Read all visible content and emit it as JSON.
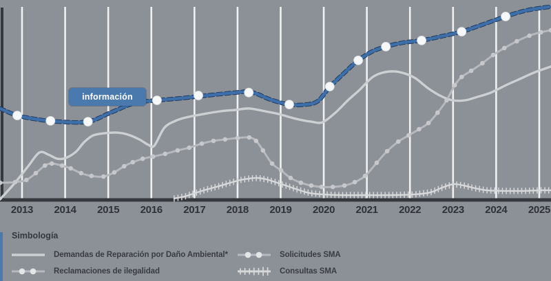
{
  "tooltip": {
    "label": "información"
  },
  "legend": {
    "title": "Simbología",
    "items": [
      {
        "id": "demandas",
        "label": "Demandas de Reparación por Daño Ambiental*",
        "swatch": "line"
      },
      {
        "id": "reclamaciones",
        "label": "Reclamaciones de ilegalidad",
        "swatch": "line-dots"
      },
      {
        "id": "solicitudes-sma",
        "label": "Solicitudes SMA",
        "swatch": "line-dots"
      },
      {
        "id": "consultas-sma",
        "label": "Consultas SMA",
        "swatch": "line-ticks"
      }
    ]
  },
  "colors": {
    "background": "#8c9097",
    "grid": "#f0f1f2",
    "axis": "#35383d",
    "highlight": "#3e6fa9",
    "highlight_edge": "#1e3a5f",
    "highlight_marker": "#f7f8f9",
    "highlight_marker_edge": "#dfe3e6",
    "tooltip_bg": "#4a79ae",
    "tooltip_text": "#ffffff",
    "gray_light": "#cdd0d3",
    "gray_mid": "#b6b9bd",
    "gray_mid_marker": "#c6c8cc",
    "gray_tick": "#d7d8da",
    "label_text": "#2e3136",
    "legend_text": "#393c41",
    "accent_bar": "#4a79ae"
  },
  "chart_data": {
    "type": "line",
    "title": "",
    "xlabel": "",
    "ylabel": "",
    "x_ticks": [
      2013,
      2014,
      2015,
      2016,
      2017,
      2018,
      2019,
      2020,
      2021,
      2022,
      2023,
      2024,
      2025
    ],
    "x_tick_labels": [
      "2013",
      "2014",
      "2015",
      "2016",
      "2017",
      "2018",
      "2019",
      "2020",
      "2021",
      "2022",
      "2023",
      "2024",
      "2025"
    ],
    "x_range": [
      2012.49,
      2025.28
    ],
    "y_range": [
      0,
      100
    ],
    "y_axis_labels_visible": false,
    "grid": "vertical-only",
    "legend_position": "bottom",
    "note_units": "relative scale 0-100 (no y-axis labels shown in source)",
    "series": [
      {
        "name": "Demandas de Reparación por Daño Ambiental*",
        "id": "demandas",
        "style": "plain-line",
        "points": [
          [
            2012.49,
            1.0
          ],
          [
            2012.81,
            8.6
          ],
          [
            2013.13,
            17.2
          ],
          [
            2013.4,
            24.4
          ],
          [
            2013.61,
            23.4
          ],
          [
            2013.82,
            21.3
          ],
          [
            2014.01,
            21.7
          ],
          [
            2014.25,
            24.8
          ],
          [
            2014.44,
            29.6
          ],
          [
            2014.65,
            33.0
          ],
          [
            2014.92,
            34.1
          ],
          [
            2015.21,
            34.4
          ],
          [
            2015.46,
            33.4
          ],
          [
            2015.72,
            31.0
          ],
          [
            2015.94,
            28.2
          ],
          [
            2016.07,
            27.9
          ],
          [
            2016.3,
            36.8
          ],
          [
            2016.56,
            40.3
          ],
          [
            2016.8,
            42.0
          ],
          [
            2017.2,
            43.7
          ],
          [
            2017.6,
            45.1
          ],
          [
            2017.95,
            45.8
          ],
          [
            2018.27,
            46.5
          ],
          [
            2018.64,
            45.1
          ],
          [
            2018.96,
            43.7
          ],
          [
            2019.36,
            41.3
          ],
          [
            2019.71,
            39.9
          ],
          [
            2019.97,
            39.6
          ],
          [
            2020.27,
            44.4
          ],
          [
            2020.56,
            50.6
          ],
          [
            2020.83,
            55.8
          ],
          [
            2021.12,
            62.0
          ],
          [
            2021.36,
            64.4
          ],
          [
            2021.63,
            65.1
          ],
          [
            2021.89,
            64.0
          ],
          [
            2022.13,
            61.6
          ],
          [
            2022.43,
            56.5
          ],
          [
            2022.72,
            52.7
          ],
          [
            2022.99,
            50.6
          ],
          [
            2023.28,
            50.6
          ],
          [
            2023.56,
            52.3
          ],
          [
            2023.87,
            54.4
          ],
          [
            2024.23,
            58.2
          ],
          [
            2024.55,
            61.3
          ],
          [
            2024.87,
            64.4
          ],
          [
            2025.27,
            67.5
          ]
        ]
      },
      {
        "name": "Reclamaciones de ilegalidad",
        "id": "reclamaciones",
        "style": "dot-markers",
        "points": [
          [
            2012.49,
            9.3
          ],
          [
            2012.84,
            9.6
          ],
          [
            2013.1,
            10.7
          ],
          [
            2013.32,
            14.1
          ],
          [
            2013.53,
            17.9
          ],
          [
            2013.69,
            18.9
          ],
          [
            2013.93,
            17.9
          ],
          [
            2014.13,
            16.5
          ],
          [
            2014.37,
            14.1
          ],
          [
            2014.61,
            12.7
          ],
          [
            2014.89,
            12.4
          ],
          [
            2015.14,
            14.5
          ],
          [
            2015.37,
            17.6
          ],
          [
            2015.57,
            19.6
          ],
          [
            2015.8,
            21.3
          ],
          [
            2016.04,
            22.4
          ],
          [
            2016.32,
            23.8
          ],
          [
            2016.61,
            25.5
          ],
          [
            2016.88,
            26.9
          ],
          [
            2017.17,
            28.9
          ],
          [
            2017.44,
            30.3
          ],
          [
            2017.71,
            31.0
          ],
          [
            2018.0,
            31.7
          ],
          [
            2018.27,
            32.0
          ],
          [
            2018.43,
            30.3
          ],
          [
            2018.59,
            25.5
          ],
          [
            2018.8,
            18.9
          ],
          [
            2019.01,
            15.5
          ],
          [
            2019.23,
            11.7
          ],
          [
            2019.47,
            9.3
          ],
          [
            2019.71,
            7.9
          ],
          [
            2019.95,
            7.2
          ],
          [
            2020.21,
            7.2
          ],
          [
            2020.48,
            7.9
          ],
          [
            2020.72,
            9.6
          ],
          [
            2020.96,
            12.7
          ],
          [
            2021.23,
            19.3
          ],
          [
            2021.47,
            25.1
          ],
          [
            2021.73,
            29.9
          ],
          [
            2021.97,
            33.0
          ],
          [
            2022.21,
            36.1
          ],
          [
            2022.43,
            39.2
          ],
          [
            2022.64,
            44.4
          ],
          [
            2022.85,
            50.6
          ],
          [
            2023.04,
            58.2
          ],
          [
            2023.2,
            62.3
          ],
          [
            2023.42,
            65.4
          ],
          [
            2023.68,
            69.2
          ],
          [
            2023.93,
            73.3
          ],
          [
            2024.19,
            76.8
          ],
          [
            2024.48,
            80.2
          ],
          [
            2024.77,
            83.0
          ],
          [
            2025.04,
            84.7
          ],
          [
            2025.27,
            85.7
          ]
        ]
      },
      {
        "name": "Solicitudes SMA",
        "id": "solicitudes-sma",
        "style": "highlighted-blue-white-markers",
        "highlighted": true,
        "points": [
          [
            2012.49,
            46.5
          ],
          [
            2012.89,
            43.0
          ],
          [
            2013.37,
            41.0
          ],
          [
            2013.85,
            39.9
          ],
          [
            2014.53,
            39.9
          ],
          [
            2015.05,
            44.4
          ],
          [
            2015.61,
            49.2
          ],
          [
            2016.13,
            50.6
          ],
          [
            2016.68,
            51.6
          ],
          [
            2017.28,
            53.0
          ],
          [
            2017.92,
            54.4
          ],
          [
            2018.32,
            54.7
          ],
          [
            2018.77,
            50.9
          ],
          [
            2019.2,
            48.5
          ],
          [
            2019.6,
            48.5
          ],
          [
            2019.87,
            50.3
          ],
          [
            2020.13,
            57.1
          ],
          [
            2020.48,
            64.4
          ],
          [
            2020.8,
            70.6
          ],
          [
            2021.12,
            75.0
          ],
          [
            2021.44,
            77.5
          ],
          [
            2021.84,
            79.5
          ],
          [
            2022.27,
            80.6
          ],
          [
            2022.72,
            82.6
          ],
          [
            2023.2,
            85.0
          ],
          [
            2023.68,
            88.5
          ],
          [
            2024.22,
            92.6
          ],
          [
            2024.71,
            95.7
          ],
          [
            2025.22,
            97.4
          ]
        ],
        "markers": [
          [
            2012.89,
            43.0
          ],
          [
            2013.66,
            40.3
          ],
          [
            2014.53,
            39.9
          ],
          [
            2016.13,
            50.6
          ],
          [
            2017.09,
            53.0
          ],
          [
            2018.26,
            54.5
          ],
          [
            2019.2,
            48.5
          ],
          [
            2020.14,
            57.5
          ],
          [
            2020.8,
            70.6
          ],
          [
            2021.44,
            77.5
          ],
          [
            2022.27,
            80.6
          ],
          [
            2023.2,
            85.0
          ],
          [
            2024.22,
            92.6
          ]
        ]
      },
      {
        "name": "Consultas SMA",
        "id": "consultas-sma",
        "style": "tick-markers",
        "points": [
          [
            2016.53,
            1.4
          ],
          [
            2016.77,
            2.4
          ],
          [
            2017.01,
            4.1
          ],
          [
            2017.28,
            5.9
          ],
          [
            2017.57,
            7.6
          ],
          [
            2017.83,
            9.3
          ],
          [
            2018.07,
            10.7
          ],
          [
            2018.27,
            11.4
          ],
          [
            2018.47,
            11.7
          ],
          [
            2018.67,
            11.0
          ],
          [
            2018.88,
            9.6
          ],
          [
            2019.12,
            7.9
          ],
          [
            2019.39,
            5.9
          ],
          [
            2019.68,
            4.1
          ],
          [
            2020.0,
            3.4
          ],
          [
            2020.4,
            3.1
          ],
          [
            2020.96,
            3.1
          ],
          [
            2021.52,
            3.1
          ],
          [
            2022.08,
            3.4
          ],
          [
            2022.48,
            4.5
          ],
          [
            2022.75,
            6.9
          ],
          [
            2023.01,
            8.6
          ],
          [
            2023.25,
            7.9
          ],
          [
            2023.52,
            6.5
          ],
          [
            2023.79,
            5.5
          ],
          [
            2024.16,
            5.2
          ],
          [
            2024.64,
            5.2
          ],
          [
            2025.04,
            5.5
          ],
          [
            2025.28,
            5.5
          ]
        ]
      }
    ]
  }
}
